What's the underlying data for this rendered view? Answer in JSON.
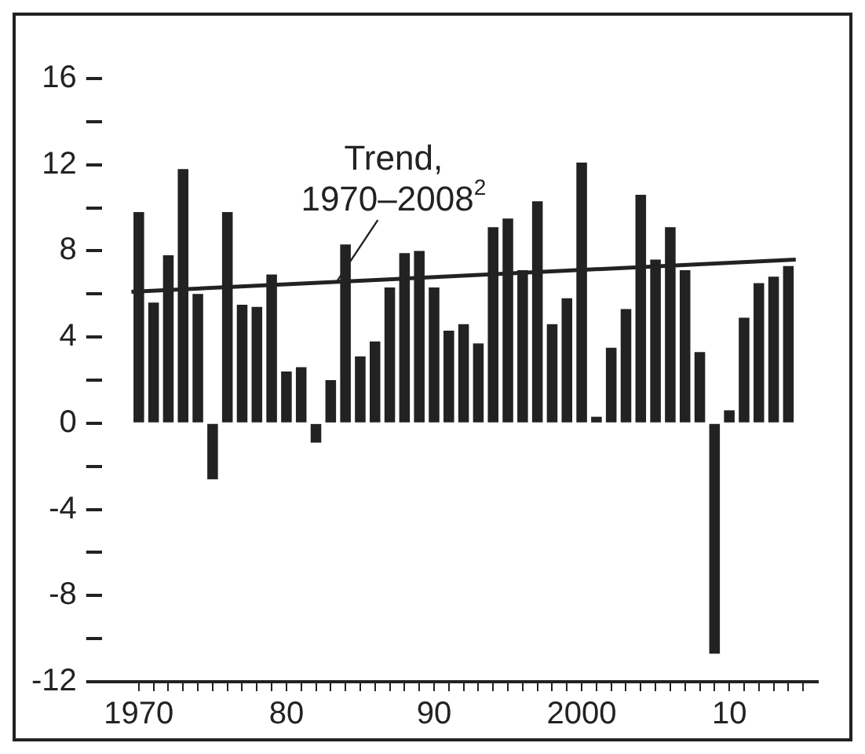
{
  "chart_data": {
    "type": "bar",
    "x": [
      1970,
      1971,
      1972,
      1973,
      1974,
      1975,
      1976,
      1977,
      1978,
      1979,
      1980,
      1981,
      1982,
      1983,
      1984,
      1985,
      1986,
      1987,
      1988,
      1989,
      1990,
      1991,
      1992,
      1993,
      1994,
      1995,
      1996,
      1997,
      1998,
      1999,
      2000,
      2001,
      2002,
      2003,
      2004,
      2005,
      2006,
      2007,
      2008,
      2009,
      2010,
      2011,
      2012,
      2013,
      2014
    ],
    "series": [
      {
        "color": "#222222",
        "values": [
          9.8,
          5.6,
          7.8,
          11.8,
          6.0,
          -2.6,
          9.8,
          5.5,
          5.4,
          6.9,
          2.4,
          2.6,
          -0.9,
          2.0,
          8.3,
          3.1,
          3.8,
          6.3,
          7.9,
          8.0,
          6.3,
          4.3,
          4.6,
          3.7,
          9.1,
          9.5,
          7.1,
          10.3,
          4.6,
          5.8,
          12.1,
          0.3,
          3.5,
          5.3,
          10.6,
          7.6,
          9.1,
          7.1,
          3.3,
          -10.7,
          0.6,
          4.9,
          6.5,
          6.8,
          7.3
        ]
      },
      {
        "type": "line",
        "color": "#222222",
        "x": [
          1969.5,
          2014.5
        ],
        "values": [
          6.1,
          7.6
        ]
      }
    ],
    "annotations": [
      {
        "text": "Trend,\n1970–2008$^{2}$",
        "x": 1983,
        "y": 6.3
      }
    ],
    "xlim": [
      1967.5,
      2016
    ],
    "xticks": [
      {
        "value": 1970,
        "label": "1970"
      },
      {
        "value": 1971,
        "label": null
      },
      {
        "value": 1972,
        "label": null
      },
      {
        "value": 1973,
        "label": null
      },
      {
        "value": 1974,
        "label": null
      },
      {
        "value": 1975,
        "label": null
      },
      {
        "value": 1976,
        "label": null
      },
      {
        "value": 1977,
        "label": null
      },
      {
        "value": 1978,
        "label": null
      },
      {
        "value": 1979,
        "label": null
      },
      {
        "value": 1980,
        "label": "80"
      },
      {
        "value": 1981,
        "label": null
      },
      {
        "value": 1982,
        "label": null
      },
      {
        "value": 1983,
        "label": null
      },
      {
        "value": 1984,
        "label": null
      },
      {
        "value": 1985,
        "label": null
      },
      {
        "value": 1986,
        "label": null
      },
      {
        "value": 1987,
        "label": null
      },
      {
        "value": 1988,
        "label": null
      },
      {
        "value": 1989,
        "label": null
      },
      {
        "value": 1990,
        "label": "90"
      },
      {
        "value": 1991,
        "label": null
      },
      {
        "value": 1992,
        "label": null
      },
      {
        "value": 1993,
        "label": null
      },
      {
        "value": 1994,
        "label": null
      },
      {
        "value": 1995,
        "label": null
      },
      {
        "value": 1996,
        "label": null
      },
      {
        "value": 1997,
        "label": null
      },
      {
        "value": 1998,
        "label": null
      },
      {
        "value": 1999,
        "label": null
      },
      {
        "value": 2000,
        "label": "2000"
      },
      {
        "value": 2001,
        "label": null
      },
      {
        "value": 2002,
        "label": null
      },
      {
        "value": 2003,
        "label": null
      },
      {
        "value": 2004,
        "label": null
      },
      {
        "value": 2005,
        "label": null
      },
      {
        "value": 2006,
        "label": null
      },
      {
        "value": 2007,
        "label": null
      },
      {
        "value": 2008,
        "label": null
      },
      {
        "value": 2009,
        "label": null
      },
      {
        "value": 2010,
        "label": "10"
      },
      {
        "value": 2011,
        "label": null
      },
      {
        "value": 2012,
        "label": null
      },
      {
        "value": 2013,
        "label": null
      },
      {
        "value": 2014,
        "label": null
      },
      {
        "value": 2015,
        "label": null
      }
    ],
    "ylim": [
      -12,
      16
    ],
    "yticks": [
      -12,
      {
        "value": -10,
        "label": null
      },
      -8,
      {
        "value": -6,
        "label": null
      },
      -4,
      {
        "value": -2,
        "label": null
      },
      0,
      {
        "value": 2,
        "label": null
      },
      4,
      {
        "value": 6,
        "label": null
      },
      8,
      {
        "value": 10,
        "label": null
      },
      12,
      {
        "value": 14,
        "label": null
      },
      16
    ],
    "grid": false,
    "legend": false,
    "marker": "none",
    "line_style": "solid"
  }
}
